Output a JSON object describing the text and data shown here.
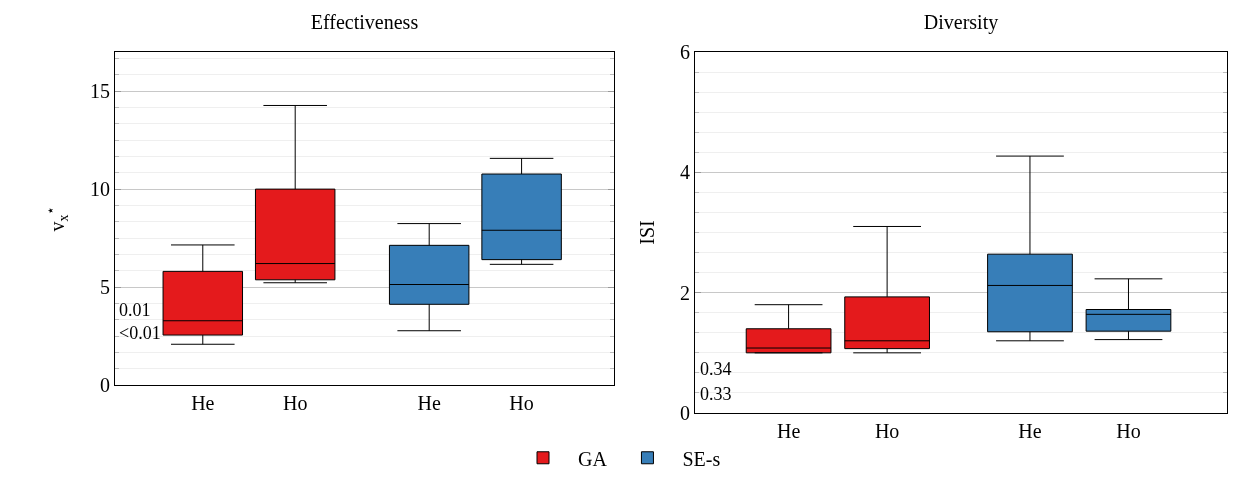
{
  "chart_data": [
    {
      "type": "box",
      "title": "Effectiveness",
      "ylabel": "v$_{x}$$^{⋆}$",
      "categories": [
        "He",
        "Ho",
        "He",
        "Ho"
      ],
      "ylim": [
        0,
        17
      ],
      "yticks": [
        0,
        5,
        10,
        15
      ],
      "grid": true,
      "legend": "bottom",
      "annotations": [
        "<0.01",
        "0.01"
      ],
      "series": [
        {
          "name": "GA",
          "color": "#e41a1c",
          "boxes": [
            {
              "low": 2.08,
              "q1": 2.55,
              "median": 3.28,
              "q3": 5.8,
              "high": 7.15
            },
            {
              "low": 5.22,
              "q1": 5.37,
              "median": 6.2,
              "q3": 10.0,
              "high": 14.27
            },
            null,
            null
          ]
        },
        {
          "name": "SE-s",
          "color": "#377eb8",
          "boxes": [
            null,
            null,
            {
              "low": 2.77,
              "q1": 4.12,
              "median": 5.13,
              "q3": 7.13,
              "high": 8.24
            },
            {
              "low": 6.16,
              "q1": 6.4,
              "median": 7.9,
              "q3": 10.77,
              "high": 11.57
            }
          ]
        }
      ]
    },
    {
      "type": "box",
      "title": "Diversity",
      "ylabel": "ISI",
      "categories": [
        "He",
        "Ho",
        "He",
        "Ho"
      ],
      "ylim": [
        0,
        6
      ],
      "yticks": [
        0,
        2,
        4,
        6
      ],
      "grid": true,
      "annotations": [
        "0.33",
        "0.34"
      ],
      "series": [
        {
          "color": "#e41a1c",
          "boxes": [
            {
              "low": 1.0,
              "q1": 1.0,
              "median": 1.08,
              "q3": 1.4,
              "high": 1.8
            },
            {
              "low": 1.0,
              "q1": 1.07,
              "median": 1.2,
              "q3": 1.93,
              "high": 3.1
            },
            null,
            null
          ]
        },
        {
          "color": "#377eb8",
          "boxes": [
            null,
            null,
            {
              "low": 1.2,
              "q1": 1.35,
              "median": 2.12,
              "q3": 2.64,
              "high": 4.27
            },
            {
              "low": 1.22,
              "q1": 1.36,
              "median": 1.64,
              "q3": 1.72,
              "high": 2.23
            }
          ]
        }
      ]
    }
  ]
}
